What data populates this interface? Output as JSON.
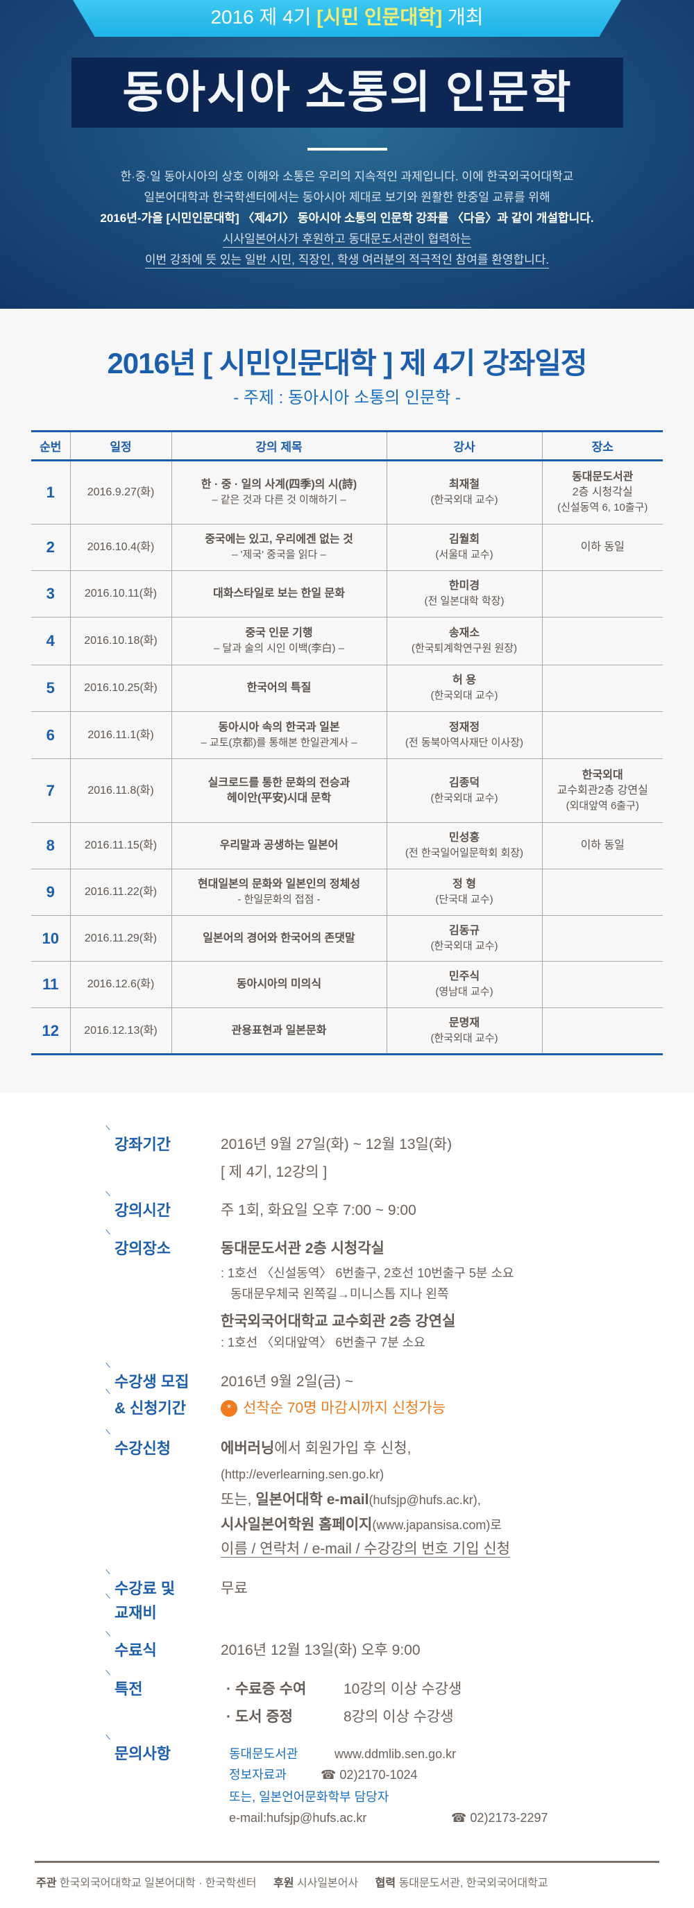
{
  "hero": {
    "band_prefix": "2016 제 4기 ",
    "band_highlight": "[시민 인문대학]",
    "band_suffix": " 개최",
    "title": "동아시아 소통의 인문학",
    "intro": [
      "한·중·일 동아시아의 상호 이해와 소통은 우리의 지속적인 과제입니다. 이에 한국외국어대학교",
      "일본어대학과 한국학센터에서는 동아시아 제대로 보기와 원활한 한중일 교류를 위해",
      "2016년-가을 [시민인문대학] 〈제4기〉 동아시아 소통의 인문학 강좌를 〈다음〉과 같이 개설합니다.",
      "시사일본어사가 후원하고 동대문도서관이 협력하는",
      "이번 강좌에 뜻 있는 일반 시민, 직장인, 학생 여러분의 적극적인 참여를 환영합니다."
    ]
  },
  "schedule": {
    "title": "2016년 [ 시민인문대학 ] 제 4기 강좌일정",
    "subtitle": "- 주제 : 동아시아 소통의 인문학 -",
    "headers": [
      "순번",
      "일정",
      "강의 제목",
      "강사",
      "장소"
    ],
    "rows": [
      {
        "no": "1",
        "date": "2016.9.27(화)",
        "title": "한 · 중 · 일의 사계(四季)의 시(詩)",
        "title_sub": "– 같은 것과 다른 것 이해하기 –",
        "lecturer": "최재철",
        "lecturer_sub": "(한국외대 교수)",
        "place": "동대문도서관",
        "place_lines": [
          "2층 시청각실",
          "(신설동역 6, 10출구)"
        ]
      },
      {
        "no": "2",
        "date": "2016.10.4(화)",
        "title": "중국에는 있고, 우리에겐 없는 것",
        "title_sub": "– '제국' 중국을 읽다 –",
        "lecturer": "김월회",
        "lecturer_sub": "(서울대 교수)",
        "place": "",
        "place_lines": [
          "이하 동일"
        ]
      },
      {
        "no": "3",
        "date": "2016.10.11(화)",
        "title": "대화스타일로 보는 한일 문화",
        "title_sub": "",
        "lecturer": "한미경",
        "lecturer_sub": "(전 일본대학 학장)",
        "place": "",
        "place_lines": []
      },
      {
        "no": "4",
        "date": "2016.10.18(화)",
        "title": "중국 인문 기행",
        "title_sub": "– 달과 술의 시인 이백(李白) –",
        "lecturer": "송재소",
        "lecturer_sub": "(한국퇴계학연구원 원장)",
        "place": "",
        "place_lines": []
      },
      {
        "no": "5",
        "date": "2016.10.25(화)",
        "title": "한국어의 특질",
        "title_sub": "",
        "lecturer": "허 용",
        "lecturer_sub": "(한국외대 교수)",
        "place": "",
        "place_lines": []
      },
      {
        "no": "6",
        "date": "2016.11.1(화)",
        "title": "동아시아 속의 한국과 일본",
        "title_sub": "– 교토(京都)를 통해본 한일관계사 –",
        "lecturer": "정재정",
        "lecturer_sub": "(전 동북아역사재단 이사장)",
        "place": "",
        "place_lines": []
      },
      {
        "no": "7",
        "date": "2016.11.8(화)",
        "title": "실크로드를 통한 문화의 전승과",
        "title_sub": "헤이안(平安)시대 문학",
        "lecturer": "김종덕",
        "lecturer_sub": "(한국외대 교수)",
        "place": "한국외대",
        "place_lines": [
          "교수회관2층 강연실",
          "(외대앞역 6출구)"
        ]
      },
      {
        "no": "8",
        "date": "2016.11.15(화)",
        "title": "우리말과 공생하는 일본어",
        "title_sub": "",
        "lecturer": "민성홍",
        "lecturer_sub": "(전 한국일어일문학회 회장)",
        "place": "",
        "place_lines": [
          "이하 동일"
        ]
      },
      {
        "no": "9",
        "date": "2016.11.22(화)",
        "title": "현대일본의 문화와 일본인의 정체성",
        "title_sub": "- 한일문화의 접점 -",
        "lecturer": "정 형",
        "lecturer_sub": "(단국대 교수)",
        "place": "",
        "place_lines": []
      },
      {
        "no": "10",
        "date": "2016.11.29(화)",
        "title": "일본어의 경어와 한국어의 존댓말",
        "title_sub": "",
        "lecturer": "김동규",
        "lecturer_sub": "(한국외대 교수)",
        "place": "",
        "place_lines": []
      },
      {
        "no": "11",
        "date": "2016.12.6(화)",
        "title": "동아시아의 미의식",
        "title_sub": "",
        "lecturer": "민주식",
        "lecturer_sub": "(영남대 교수)",
        "place": "",
        "place_lines": []
      },
      {
        "no": "12",
        "date": "2016.12.13(화)",
        "title": "관용표현과 일본문화",
        "title_sub": "",
        "lecturer": "문명재",
        "lecturer_sub": "(한국외대 교수)",
        "place": "",
        "place_lines": []
      }
    ]
  },
  "info": {
    "period": {
      "label": "강좌기간",
      "line1": "2016년 9월 27일(화) ~ 12월 13일(화)",
      "line2": "[ 제 4기, 12강의 ]"
    },
    "time": {
      "label": "강의시간",
      "value": "주 1회, 화요일 오후 7:00 ~ 9:00"
    },
    "venue": {
      "label": "강의장소",
      "place1": "동대문도서관 2층 시청각실",
      "place1_dir1": ": 1호선 〈신설동역〉 6번출구, 2호선 10번출구 5분 소요",
      "place1_dir2": "동대문우체국 왼쪽길→미니스톱 지나 왼쪽",
      "place2": "한국외국어대학교 교수회관 2층 강연실",
      "place2_dir": ": 1호선 〈외대앞역〉 6번출구 7분 소요"
    },
    "recruit": {
      "label1": "수강생 모집",
      "label2": "& 신청기간",
      "value": "2016년 9월 2일(금) ~",
      "star": "*",
      "note": "선착순 70명 마감시까지 신청가능"
    },
    "apply": {
      "label": "수강신청",
      "l1_bold": "에버러닝",
      "l1_rest": "에서 회원가입 후 신청,",
      "l2": "(http://everlearning.sen.go.kr)",
      "l3_pre": "또는, ",
      "l3_bold": "일본어대학 e-mail",
      "l3_rest": "(hufsjp@hufs.ac.kr),",
      "l4_bold": "시사일본어학원 홈페이지",
      "l4_rest": "(www.japansisa.com)로",
      "l5": "이름 / 연락처 / e-mail / 수강강의 번호 기입 신청"
    },
    "fee": {
      "label1": "수강료 및",
      "label2": "교재비",
      "value": "무료"
    },
    "ceremony": {
      "label": "수료식",
      "value": "2016년 12월 13일(화) 오후 9:00"
    },
    "benefits": {
      "label": "특전",
      "items": [
        {
          "name": "· 수료증 수여",
          "cond": "10강의 이상 수강생"
        },
        {
          "name": "· 도서 증정",
          "cond": "8강의 이상 수강생"
        }
      ]
    },
    "contact": {
      "label": "문의사항",
      "org1": "동대문도서관",
      "url1": "www.ddmlib.sen.go.kr",
      "org2": "정보자료과",
      "phone1": "☎ 02)2170-1024",
      "org3": "또는, 일본언어문화학부 담당자",
      "email": "e-mail:hufsjp@hufs.ac.kr",
      "phone2": "☎ 02)2173-2297"
    }
  },
  "footer": {
    "host_label": "주관",
    "host": "한국외국어대학교 일본어대학 · 한국학센터",
    "sponsor_label": "후원",
    "sponsor": "시사일본어사",
    "coop_label": "협력",
    "coop": "동대문도서관, 한국외국어대학교"
  }
}
